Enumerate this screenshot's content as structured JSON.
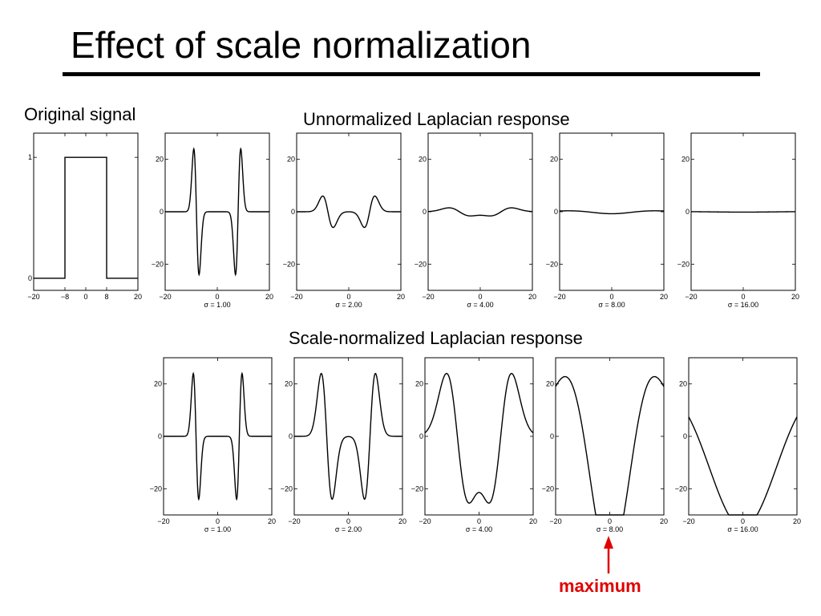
{
  "slide": {
    "title": "Effect of scale normalization",
    "label_original": "Original signal",
    "label_unnormalized": "Unnormalized Laplacian response",
    "label_normalized": "Scale-normalized Laplacian response",
    "annotation": {
      "text": "maximum",
      "color": "#e00000"
    }
  },
  "chart_data": [
    {
      "id": "original",
      "type": "line",
      "function": "box",
      "box_edges": [
        -8,
        8
      ],
      "xlim": [
        -20,
        20
      ],
      "ylim": [
        -0.1,
        1.2
      ],
      "xticks": [
        -20,
        -8,
        0,
        8,
        20
      ],
      "yticks": [
        0,
        1
      ],
      "xlabel": ""
    },
    {
      "id": "unnorm-1",
      "type": "line",
      "function": "log_response",
      "normalized": false,
      "sigma": 1,
      "xlim": [
        -20,
        20
      ],
      "ylim": [
        -30,
        30
      ],
      "xticks": [
        -20,
        0,
        20
      ],
      "yticks": [
        20,
        0,
        -20
      ],
      "xlabel": "σ = 1.00"
    },
    {
      "id": "unnorm-2",
      "type": "line",
      "function": "log_response",
      "normalized": false,
      "sigma": 2,
      "xlim": [
        -20,
        20
      ],
      "ylim": [
        -30,
        30
      ],
      "xticks": [
        -20,
        0,
        20
      ],
      "yticks": [
        20,
        0,
        -20
      ],
      "xlabel": "σ = 2.00"
    },
    {
      "id": "unnorm-4",
      "type": "line",
      "function": "log_response",
      "normalized": false,
      "sigma": 4,
      "xlim": [
        -20,
        20
      ],
      "ylim": [
        -30,
        30
      ],
      "xticks": [
        -20,
        0,
        20
      ],
      "yticks": [
        20,
        0,
        -20
      ],
      "xlabel": "σ = 4.00"
    },
    {
      "id": "unnorm-8",
      "type": "line",
      "function": "log_response",
      "normalized": false,
      "sigma": 8,
      "xlim": [
        -20,
        20
      ],
      "ylim": [
        -30,
        30
      ],
      "xticks": [
        -20,
        0,
        20
      ],
      "yticks": [
        20,
        0,
        -20
      ],
      "xlabel": "σ = 8.00"
    },
    {
      "id": "unnorm-16",
      "type": "line",
      "function": "log_response",
      "normalized": false,
      "sigma": 16,
      "xlim": [
        -20,
        20
      ],
      "ylim": [
        -30,
        30
      ],
      "xticks": [
        -20,
        0,
        20
      ],
      "yticks": [
        20,
        0,
        -20
      ],
      "xlabel": "σ = 16.00"
    },
    {
      "id": "norm-1",
      "type": "line",
      "function": "log_response",
      "normalized": true,
      "sigma": 1,
      "xlim": [
        -20,
        20
      ],
      "ylim": [
        -30,
        30
      ],
      "xticks": [
        -20,
        0,
        20
      ],
      "yticks": [
        20,
        0,
        -20
      ],
      "xlabel": "σ = 1.00"
    },
    {
      "id": "norm-2",
      "type": "line",
      "function": "log_response",
      "normalized": true,
      "sigma": 2,
      "xlim": [
        -20,
        20
      ],
      "ylim": [
        -30,
        30
      ],
      "xticks": [
        -20,
        0,
        20
      ],
      "yticks": [
        20,
        0,
        -20
      ],
      "xlabel": "σ = 2.00"
    },
    {
      "id": "norm-4",
      "type": "line",
      "function": "log_response",
      "normalized": true,
      "sigma": 4,
      "xlim": [
        -20,
        20
      ],
      "ylim": [
        -30,
        30
      ],
      "xticks": [
        -20,
        0,
        20
      ],
      "yticks": [
        20,
        0,
        -20
      ],
      "xlabel": "σ = 4.00"
    },
    {
      "id": "norm-8",
      "type": "line",
      "function": "log_response",
      "normalized": true,
      "sigma": 8,
      "xlim": [
        -20,
        20
      ],
      "ylim": [
        -30,
        30
      ],
      "xticks": [
        -20,
        0,
        20
      ],
      "yticks": [
        20,
        0,
        -20
      ],
      "xlabel": "σ = 8.00"
    },
    {
      "id": "norm-16",
      "type": "line",
      "function": "log_response",
      "normalized": true,
      "sigma": 16,
      "xlim": [
        -20,
        20
      ],
      "ylim": [
        -30,
        30
      ],
      "xticks": [
        -20,
        0,
        20
      ],
      "yticks": [
        20,
        0,
        -20
      ],
      "xlabel": "σ = 16.00"
    }
  ]
}
